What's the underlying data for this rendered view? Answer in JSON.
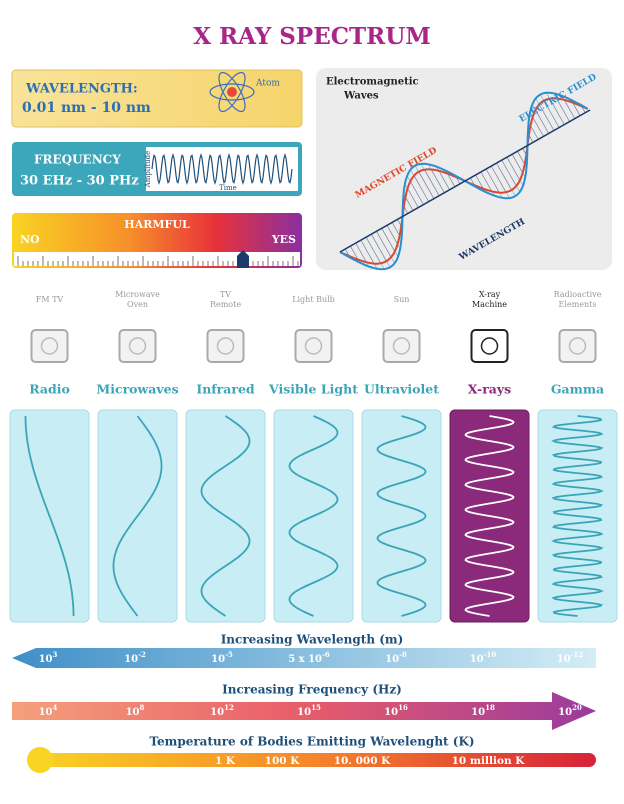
{
  "title": "X RAY SPECTRUM",
  "wavelength": {
    "label": "WAVELENGTH:",
    "value": "0.01 nm - 10 nm",
    "atom": "Atom"
  },
  "frequency": {
    "label": "FREQUENCY",
    "value": "30 EHz - 30 PHz",
    "amplitude": "Amplitude",
    "time": "Time"
  },
  "harm": {
    "label": "HARMFUL",
    "no": "NO",
    "yes": "YES"
  },
  "em_panel": {
    "title_line1": "Electromagnetic",
    "title_line2": "Waves",
    "electric": "ELECTRIC FIELD",
    "magnetic": "MAGNETIC FIELD",
    "wavelength": "WAVELENGTH"
  },
  "bands": [
    {
      "source": [
        "FM  TV"
      ],
      "name": "Radio"
    },
    {
      "source": [
        "Microwave",
        "Oven"
      ],
      "name": "Microwaves"
    },
    {
      "source": [
        "TV",
        "Remote"
      ],
      "name": "Infrared"
    },
    {
      "source": [
        "Light Bulb"
      ],
      "name": "Visible Light"
    },
    {
      "source": [
        "Sun"
      ],
      "name": "Ultraviolet"
    },
    {
      "source": [
        "X-ray",
        "Machine"
      ],
      "name": "X-rays"
    },
    {
      "source": [
        "Radioactive",
        "Elements"
      ],
      "name": "Gamma"
    }
  ],
  "scales": {
    "wavelength": {
      "title": "Increasing Wavelength (m)",
      "labels": [
        {
          "base": "10",
          "exp": "3"
        },
        {
          "base": "10",
          "exp": "-2"
        },
        {
          "base": "10",
          "exp": "-5"
        },
        {
          "base": "5 x 10",
          "exp": "-6"
        },
        {
          "base": "10",
          "exp": "-8"
        },
        {
          "base": "10",
          "exp": "-10"
        },
        {
          "base": "10",
          "exp": "-12"
        }
      ]
    },
    "frequency": {
      "title": "Increasing Frequency (Hz)",
      "labels": [
        {
          "base": "10",
          "exp": "4"
        },
        {
          "base": "10",
          "exp": "8"
        },
        {
          "base": "10",
          "exp": "12"
        },
        {
          "base": "10",
          "exp": "15"
        },
        {
          "base": "10",
          "exp": "16"
        },
        {
          "base": "10",
          "exp": "18"
        },
        {
          "base": "10",
          "exp": "20"
        }
      ]
    },
    "temperature": {
      "title": "Temperature of Bodies Emitting Wavelenght (K)",
      "labels": [
        "1 K",
        "100 K",
        "10. 000 K",
        "10 million K"
      ]
    }
  }
}
